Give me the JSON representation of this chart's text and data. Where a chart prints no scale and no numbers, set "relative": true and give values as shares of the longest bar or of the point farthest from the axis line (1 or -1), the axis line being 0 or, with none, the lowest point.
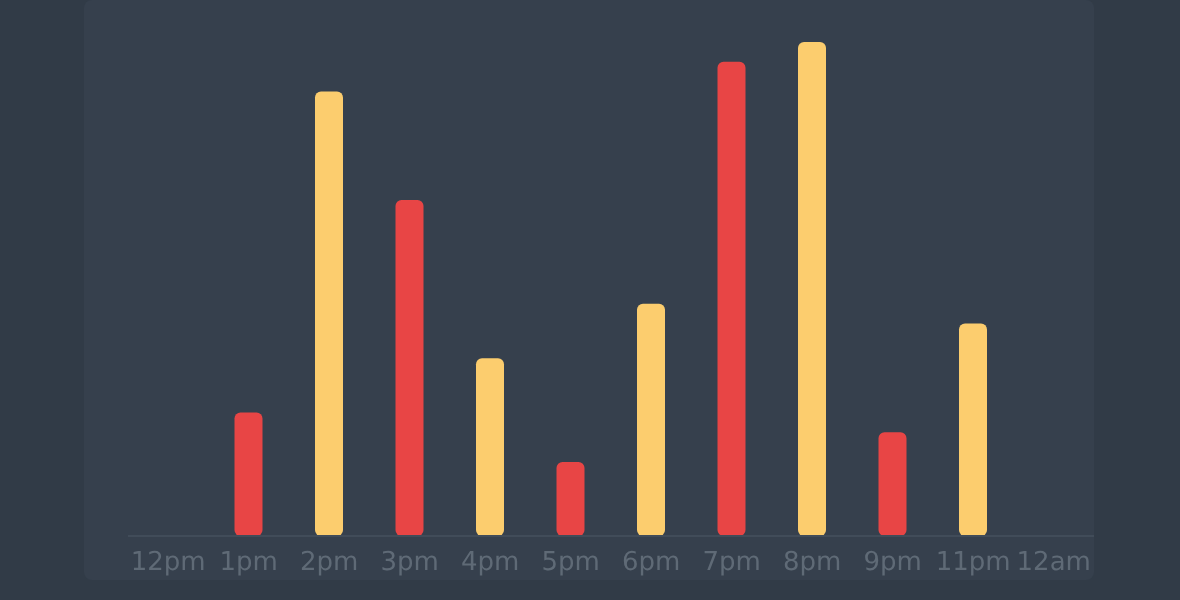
{
  "chart_data": {
    "type": "bar",
    "relative": true,
    "categories": [
      "12pm",
      "1pm",
      "2pm",
      "3pm",
      "4pm",
      "5pm",
      "6pm",
      "7pm",
      "8pm",
      "9pm",
      "11pm",
      "12am"
    ],
    "values": [
      null,
      0.25,
      0.9,
      0.68,
      0.36,
      0.15,
      0.47,
      0.96,
      1,
      0.21,
      0.43,
      null
    ],
    "colors": [
      "#e84545",
      "#e84545",
      "#fccd6e",
      "#e84545",
      "#fccd6e",
      "#e84545",
      "#fccd6e",
      "#e84545",
      "#fccd6e",
      "#e84545",
      "#fccd6e",
      "#fccd6e"
    ],
    "grid": false,
    "legend": false
  }
}
